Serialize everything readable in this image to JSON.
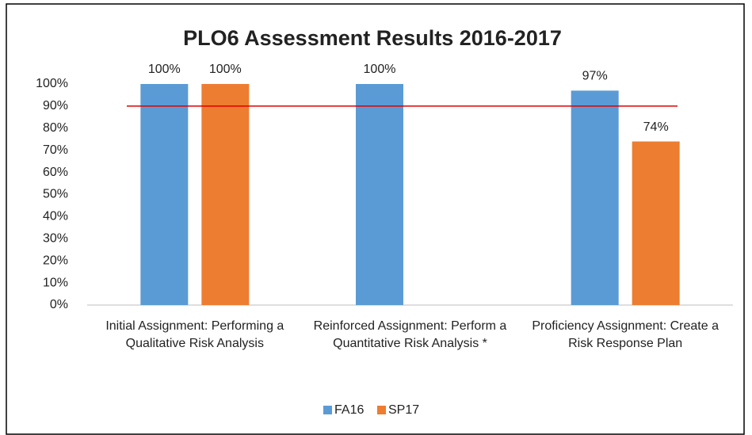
{
  "chart_data": {
    "type": "bar",
    "title": "PLO6 Assessment Results 2016-2017",
    "categories": [
      "Initial Assignment: Performing a Qualitative Risk Analysis",
      "Reinforced Assignment: Perform a Quantitative Risk Analysis *",
      "Proficiency Assignment: Create a Risk Response Plan"
    ],
    "series": [
      {
        "name": "FA16",
        "color": "#5b9bd5",
        "values": [
          100,
          100,
          97
        ],
        "value_labels": [
          "100%",
          "100%",
          "97%"
        ]
      },
      {
        "name": "SP17",
        "color": "#ed7d31",
        "values": [
          100,
          null,
          74
        ],
        "value_labels": [
          "100%",
          null,
          "74%"
        ]
      }
    ],
    "ylim": [
      0,
      100
    ],
    "yticks": [
      {
        "value": 0,
        "label": "0%"
      },
      {
        "value": 10,
        "label": "10%"
      },
      {
        "value": 20,
        "label": "20%"
      },
      {
        "value": 30,
        "label": "30%"
      },
      {
        "value": 40,
        "label": "40%"
      },
      {
        "value": 50,
        "label": "50%"
      },
      {
        "value": 60,
        "label": "60%"
      },
      {
        "value": 70,
        "label": "70%"
      },
      {
        "value": 80,
        "label": "80%"
      },
      {
        "value": 90,
        "label": "90%"
      },
      {
        "value": 100,
        "label": "100%"
      }
    ],
    "reference_line": {
      "value": 90,
      "color": "#e00000"
    },
    "legend": "bottom"
  }
}
